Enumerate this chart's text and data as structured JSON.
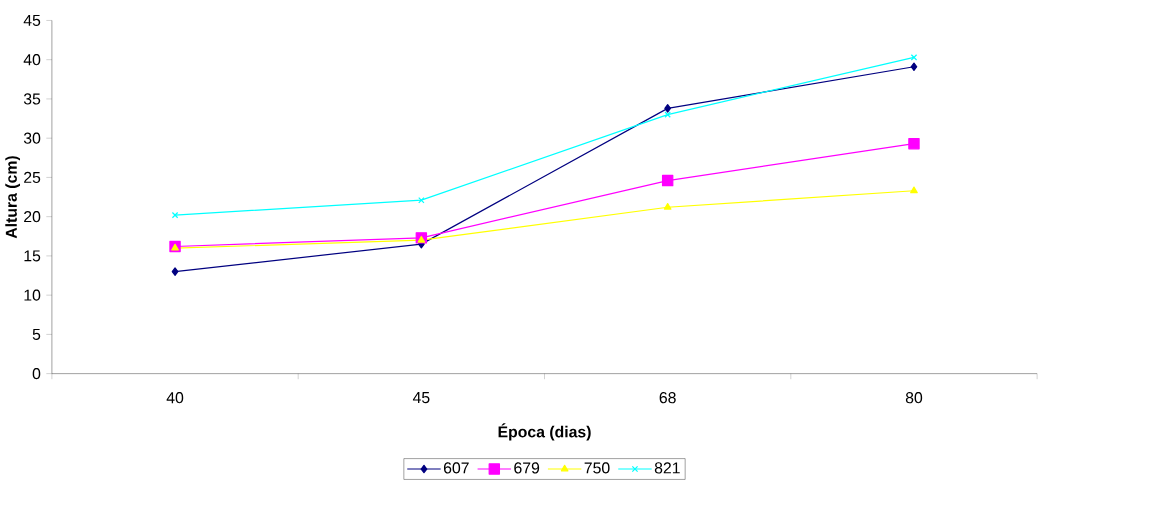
{
  "chart_data": {
    "type": "line",
    "xlabel": "Época (dias)",
    "ylabel": "Altura (cm)",
    "categories": [
      "40",
      "45",
      "68",
      "80"
    ],
    "series": [
      {
        "name": "607",
        "color": "#000080",
        "marker": "diamond",
        "values": [
          13.0,
          16.5,
          33.8,
          39.1
        ]
      },
      {
        "name": "679",
        "color": "#ff00ff",
        "marker": "square",
        "values": [
          16.2,
          17.3,
          24.6,
          29.3
        ]
      },
      {
        "name": "750",
        "color": "#ffff00",
        "marker": "triangle",
        "values": [
          16.0,
          17.0,
          21.2,
          23.3
        ]
      },
      {
        "name": "821",
        "color": "#00ffff",
        "marker": "cross",
        "values": [
          20.2,
          22.1,
          33.0,
          40.3
        ]
      }
    ],
    "ylim": [
      0,
      45
    ],
    "yticks": [
      0,
      5,
      10,
      15,
      20,
      25,
      30,
      35,
      40,
      45
    ],
    "grid": false,
    "legend": "bottom",
    "line_style": "solid"
  }
}
